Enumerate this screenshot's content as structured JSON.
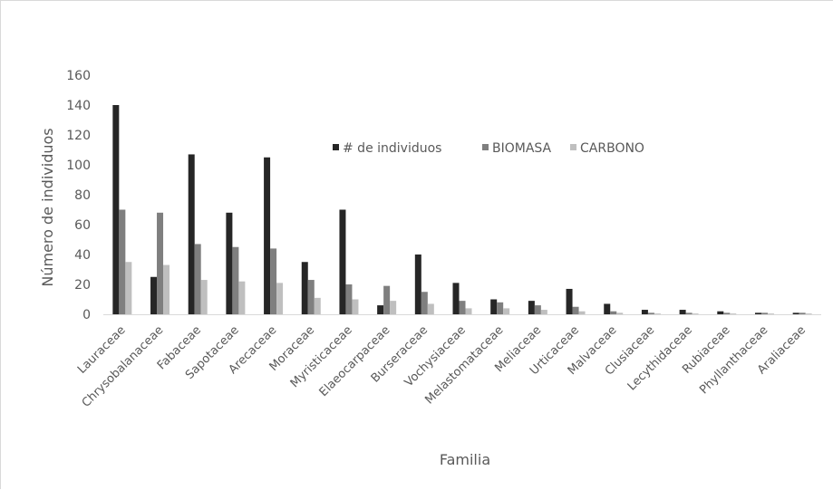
{
  "chart_data": {
    "type": "bar",
    "title": "",
    "xlabel": "Familia",
    "ylabel": "Número de individuos",
    "ylim": [
      0,
      160
    ],
    "yticks": [
      0,
      20,
      40,
      60,
      80,
      100,
      120,
      140,
      160
    ],
    "grid": false,
    "legend_position": "top-center",
    "categories": [
      "Lauraceae",
      "Chrysobalanaceae",
      "Fabaceae",
      "Sapotaceae",
      "Arecaceae",
      "Moraceae",
      "Myristicaceae",
      "Elaeocarpaceae",
      "Burseraceae",
      "Vochysiaceae",
      "Melastomataceae",
      "Meliaceae",
      "Urticaceae",
      "Malvaceae",
      "Clusiaceae",
      "Lecythidaceae",
      "Rubiaceae",
      "Phyllanthaceae",
      "Araliaceae"
    ],
    "series": [
      {
        "name": "# de individuos",
        "color": "#262626",
        "values": [
          140,
          25,
          107,
          68,
          105,
          35,
          70,
          6,
          40,
          21,
          10,
          9,
          17,
          7,
          3,
          3,
          2,
          1,
          1
        ]
      },
      {
        "name": "BIOMASA",
        "color": "#7f7f7f",
        "values": [
          70,
          68,
          47,
          45,
          44,
          23,
          20,
          19,
          15,
          9,
          8,
          6,
          5,
          2,
          1,
          1,
          1,
          1,
          1
        ]
      },
      {
        "name": "CARBONO",
        "color": "#bfbfbf",
        "values": [
          35,
          33,
          23,
          22,
          21,
          11,
          10,
          9,
          7,
          4,
          4,
          3,
          2,
          1,
          0.5,
          0.5,
          0.5,
          0.5,
          0.5
        ]
      }
    ]
  }
}
